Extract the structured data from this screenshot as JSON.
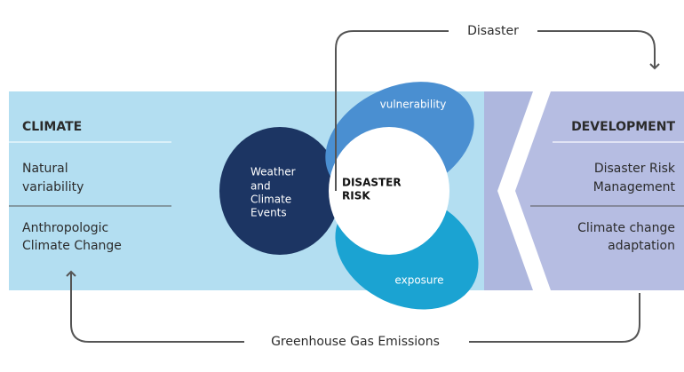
{
  "arrows": {
    "top": "Disaster",
    "bottom": "Greenhouse Gas Emissions"
  },
  "left": {
    "title": "CLIMATE",
    "items": [
      [
        "Natural",
        "variability"
      ],
      [
        "Anthropologic",
        "Climate Change"
      ]
    ]
  },
  "right": {
    "title": "DEVELOPMENT",
    "items": [
      [
        "Disaster Risk",
        "Management"
      ],
      [
        "Climate change",
        "adaptation"
      ]
    ]
  },
  "center": {
    "hazard": [
      "Weather",
      "and",
      "Climate",
      "Events"
    ],
    "risk": [
      "DISASTER",
      "RISK"
    ],
    "vulnerability": "vulnerability",
    "exposure": "exposure"
  }
}
